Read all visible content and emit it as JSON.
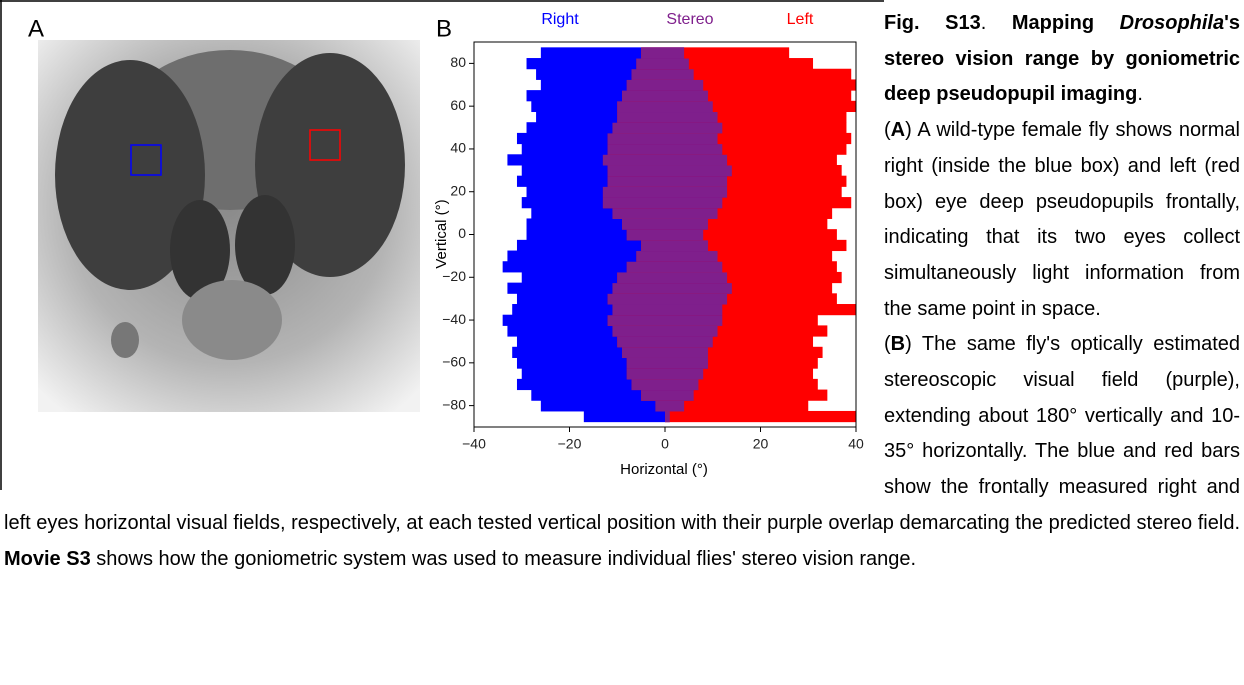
{
  "panels": [
    "A",
    "B"
  ],
  "chart_data": {
    "type": "range_bar",
    "xlabel": "Horizontal (°)",
    "ylabel": "Vertical (°)",
    "xlim": [
      -40,
      40
    ],
    "ylim": [
      -90,
      90
    ],
    "xticks": [
      {
        "value": -40,
        "label": "−40"
      },
      {
        "value": -20,
        "label": "−20"
      },
      0,
      20,
      40
    ],
    "yticks": [
      {
        "value": -80,
        "label": "−80"
      },
      {
        "value": -60,
        "label": "−60"
      },
      {
        "value": -40,
        "label": "−40"
      },
      {
        "value": -20,
        "label": "−20"
      },
      0,
      20,
      40,
      60,
      80
    ],
    "y": [
      -85,
      -80,
      -75,
      -70,
      -65,
      -60,
      -55,
      -50,
      -45,
      -40,
      -35,
      -30,
      -25,
      -20,
      -15,
      -10,
      -5,
      0,
      5,
      10,
      15,
      20,
      25,
      30,
      35,
      40,
      45,
      50,
      55,
      60,
      65,
      70,
      75,
      80,
      85
    ],
    "series": [
      {
        "name": "Right",
        "color": "#0000ff",
        "start": [
          -17,
          -26,
          -28,
          -31,
          -30,
          -31,
          -32,
          -31,
          -33,
          -34,
          -32,
          -31,
          -33,
          -30,
          -34,
          -33,
          -31,
          -29,
          -29,
          -28,
          -30,
          -29,
          -31,
          -30,
          -33,
          -30,
          -31,
          -29,
          -27,
          -28,
          -29,
          -26,
          -27,
          -29,
          -26
        ],
        "end": [
          1,
          4,
          6,
          7,
          8,
          9,
          9,
          10,
          11,
          12,
          12,
          13,
          14,
          13,
          12,
          11,
          9,
          8,
          9,
          11,
          12,
          13,
          13,
          14,
          13,
          12,
          11,
          12,
          11,
          10,
          9,
          8,
          6,
          5,
          4
        ]
      },
      {
        "name": "Left",
        "color": "#ff0000",
        "start": [
          0,
          -2,
          -5,
          -7,
          -8,
          -8,
          -9,
          -10,
          -11,
          -12,
          -11,
          -12,
          -11,
          -10,
          -8,
          -6,
          -5,
          -8,
          -9,
          -11,
          -13,
          -13,
          -12,
          -12,
          -13,
          -12,
          -12,
          -11,
          -10,
          -10,
          -9,
          -8,
          -7,
          -6,
          -5
        ],
        "end": [
          40,
          30,
          34,
          32,
          31,
          32,
          33,
          31,
          34,
          32,
          40,
          36,
          35,
          37,
          36,
          35,
          38,
          36,
          34,
          35,
          39,
          37,
          38,
          37,
          36,
          38,
          39,
          38,
          38,
          40,
          39,
          40,
          39,
          31,
          26
        ]
      }
    ],
    "overlap": {
      "name": "Stereo",
      "color": "#7f1f8c"
    }
  },
  "caption": {
    "figure_label": "Fig. S13",
    "label_end": ". ",
    "title_parts": [
      "Mapping ",
      "Drosophila",
      "'s stereo vision range by goniometric deep pseudopupil imaging"
    ],
    "title_end": ".",
    "panel_a": {
      "open": "(",
      "label": "A",
      "text": ") A wild-type female fly shows normal right (inside the blue box) and left (red box) eye deep pseudopupils frontally, indicating that its two eyes collect simultaneously light information from the same point in space."
    },
    "panel_b": {
      "open": "(",
      "label": "B",
      "text": ") The same fly's optically estimated stereoscopic visual field (purple), extending about 180° vertically and 10-35° horizontally. The blue and red bars show the frontally measured right and left eyes horizontal visual fields, respectively, at each tested vertical position with their purple overlap demarcating the predicted stereo field. ",
      "movie": "Movie S3",
      "movie_text": " shows how the goniometric system was used to measure individual flies' stereo vision range."
    }
  }
}
